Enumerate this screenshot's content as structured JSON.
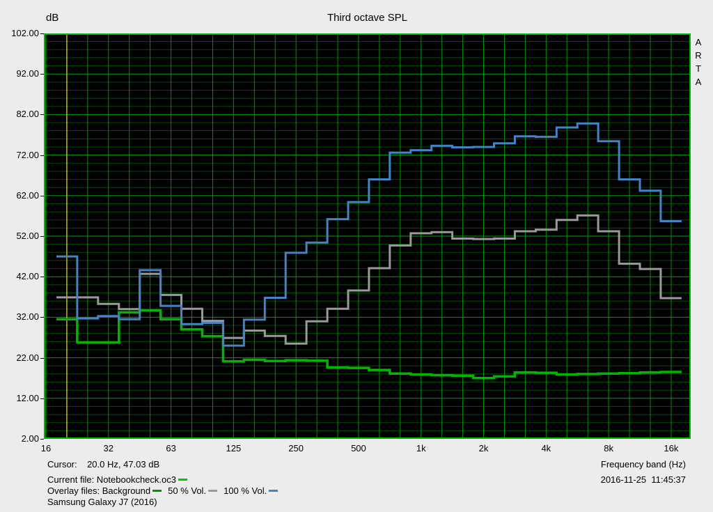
{
  "header": {
    "y_axis_unit": "dB",
    "title": "Third octave SPL",
    "watermark": "ARTA"
  },
  "footer": {
    "cursor_readout": "Cursor:    20.0 Hz, 47.03 dB",
    "current_file_label": "Current file: Notebookcheck.oc3",
    "overlay_files_label": "Overlay files: Background",
    "overlay_50_label": "50 % Vol.",
    "overlay_100_label": "100 % Vol.",
    "device_label": "Samsung Galaxy J7 (2016)",
    "x_axis_label": "Frequency band (Hz)",
    "timestamp": "2016-11-25  11:45:37"
  },
  "colors": {
    "page_bg": "#ececec",
    "plot_bg": "#000000",
    "grid_minor": "#064906",
    "grid_major": "#00a000",
    "grid_vertical": "#009000",
    "plot_border": "#00b400",
    "cursor_line": "#cccc00",
    "series_background": "#00b400",
    "series_50": "#9a9a9a",
    "series_100": "#4484c4",
    "legend_current_dash": "#00c800",
    "legend_background_dash": "#009600",
    "legend_50_dash": "#9a9a9a",
    "legend_100_dash": "#4484c4"
  },
  "chart_data": {
    "type": "step-line-third-octave",
    "title": "Third octave SPL",
    "xlabel": "Frequency band (Hz)",
    "ylabel": "dB",
    "ylim": [
      2,
      102
    ],
    "y_major_step": 10,
    "y_minor_step": 2,
    "grid": true,
    "legend_position": "below-left",
    "y_tick_labels": [
      "102.00",
      "92.00",
      "82.00",
      "72.00",
      "62.00",
      "52.00",
      "42.00",
      "32.00",
      "22.00",
      "12.00",
      "2.00"
    ],
    "x_tick_labels": [
      "16",
      "32",
      "63",
      "125",
      "250",
      "500",
      "1k",
      "2k",
      "4k",
      "8k",
      "16k"
    ],
    "bands": [
      "16",
      "20",
      "25",
      "31.5",
      "40",
      "50",
      "63",
      "80",
      "100",
      "125",
      "160",
      "200",
      "250",
      "315",
      "400",
      "500",
      "630",
      "800",
      "1k",
      "1.25k",
      "1.6k",
      "2k",
      "2.5k",
      "3.15k",
      "4k",
      "5k",
      "6.3k",
      "8k",
      "10k",
      "12.5k",
      "16k"
    ],
    "cursor": {
      "band": "20",
      "band_index": 1,
      "readout_hz": "20.0",
      "readout_db": 47.03
    },
    "series": [
      {
        "name": "Background",
        "color_key": "series_background",
        "stroke_width": 3.5,
        "values": [
          null,
          31.5,
          25.8,
          25.8,
          33.2,
          33.7,
          31.5,
          29.0,
          27.3,
          21.1,
          21.5,
          21.2,
          21.4,
          21.3,
          19.6,
          19.5,
          19.0,
          18.1,
          17.9,
          17.7,
          17.6,
          17.0,
          17.4,
          18.4,
          18.3,
          17.9,
          18.0,
          18.1,
          18.2,
          18.4,
          18.5
        ]
      },
      {
        "name": "50 % Vol.",
        "color_key": "series_50",
        "stroke_width": 3,
        "values": [
          null,
          36.9,
          36.9,
          35.3,
          34.0,
          42.7,
          37.5,
          34.1,
          31.1,
          26.9,
          28.7,
          27.4,
          25.5,
          31.0,
          34.1,
          38.6,
          44.1,
          49.7,
          52.7,
          53.0,
          51.4,
          51.3,
          51.4,
          53.2,
          53.6,
          56.0,
          57.1,
          53.2,
          45.2,
          43.9,
          36.7
        ]
      },
      {
        "name": "100 % Vol.",
        "color_key": "series_100",
        "stroke_width": 3,
        "values": [
          null,
          47.0,
          31.7,
          32.3,
          31.5,
          43.6,
          34.8,
          30.3,
          30.6,
          25.0,
          31.4,
          36.8,
          47.9,
          50.4,
          56.2,
          60.4,
          66.0,
          72.6,
          73.2,
          74.3,
          73.9,
          74.0,
          74.9,
          76.6,
          76.5,
          78.8,
          79.8,
          75.4,
          66.0,
          63.2,
          55.7
        ]
      }
    ]
  }
}
